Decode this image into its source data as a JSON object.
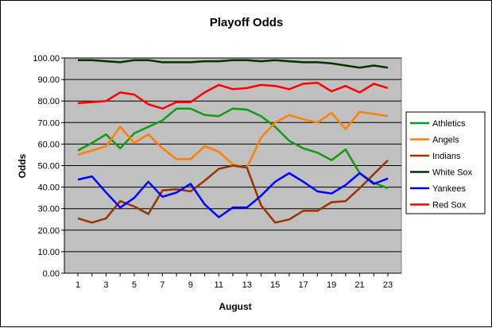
{
  "chart_data": {
    "type": "line",
    "title": "Playoff Odds",
    "xlabel": "August",
    "ylabel": "Odds",
    "x": [
      1,
      2,
      3,
      4,
      5,
      6,
      7,
      8,
      9,
      10,
      11,
      12,
      13,
      14,
      15,
      16,
      17,
      18,
      19,
      20,
      21,
      22,
      23
    ],
    "x_tick_labels": [
      "1",
      "3",
      "5",
      "7",
      "9",
      "11",
      "13",
      "15",
      "17",
      "19",
      "21",
      "23"
    ],
    "y_tick_labels": [
      "0.00",
      "10.00",
      "20.00",
      "30.00",
      "40.00",
      "50.00",
      "60.00",
      "70.00",
      "80.00",
      "90.00",
      "100.00"
    ],
    "ylim": [
      0,
      100
    ],
    "grid": "horizontal",
    "legend_position": "right",
    "plot_background": "#c0c0c0",
    "series": [
      {
        "name": "Athletics",
        "color": "#119911",
        "values": [
          57,
          60.5,
          64.5,
          58,
          65,
          68,
          71,
          76.5,
          76.5,
          73.5,
          73,
          76.5,
          76,
          73,
          68,
          61.5,
          58,
          56,
          52.5,
          57.5,
          46.5,
          42,
          39.5
        ]
      },
      {
        "name": "Angels",
        "color": "#ff8000",
        "values": [
          55,
          57,
          59,
          68,
          60.5,
          64.5,
          58,
          53,
          53,
          59,
          56.5,
          50.5,
          49,
          63,
          70,
          73.5,
          71.5,
          70,
          74.5,
          67,
          75,
          74,
          73
        ]
      },
      {
        "name": "Indians",
        "color": "#993300",
        "values": [
          25.5,
          23.5,
          25.5,
          33.5,
          31,
          27.5,
          38.5,
          39,
          38,
          43,
          48.5,
          50,
          49,
          31.5,
          23.5,
          25,
          29,
          29,
          33,
          33.5,
          39.5,
          46,
          52.5
        ]
      },
      {
        "name": "White Sox",
        "color": "#003300",
        "values": [
          99,
          99,
          98.5,
          98,
          99,
          99,
          98,
          98,
          98,
          98.5,
          98.5,
          99,
          99,
          98.5,
          99,
          98.5,
          98,
          98,
          97.5,
          96.5,
          95.5,
          96.5,
          95.5
        ]
      },
      {
        "name": "Yankees",
        "color": "#0000ff",
        "values": [
          43.5,
          45,
          37.5,
          30.5,
          35,
          42.5,
          35.5,
          37.5,
          41.5,
          32,
          26,
          30.5,
          30.5,
          36,
          42.5,
          46.5,
          42.5,
          38,
          37,
          41,
          46.5,
          41.5,
          44
        ]
      },
      {
        "name": "Red Sox",
        "color": "#ff0000",
        "values": [
          79,
          79.5,
          80,
          84,
          83,
          78.5,
          76.5,
          79.5,
          79.5,
          84,
          87.5,
          85.5,
          86,
          87.5,
          87,
          85.5,
          88,
          88.5,
          84.5,
          87,
          84,
          88,
          86
        ]
      }
    ]
  }
}
